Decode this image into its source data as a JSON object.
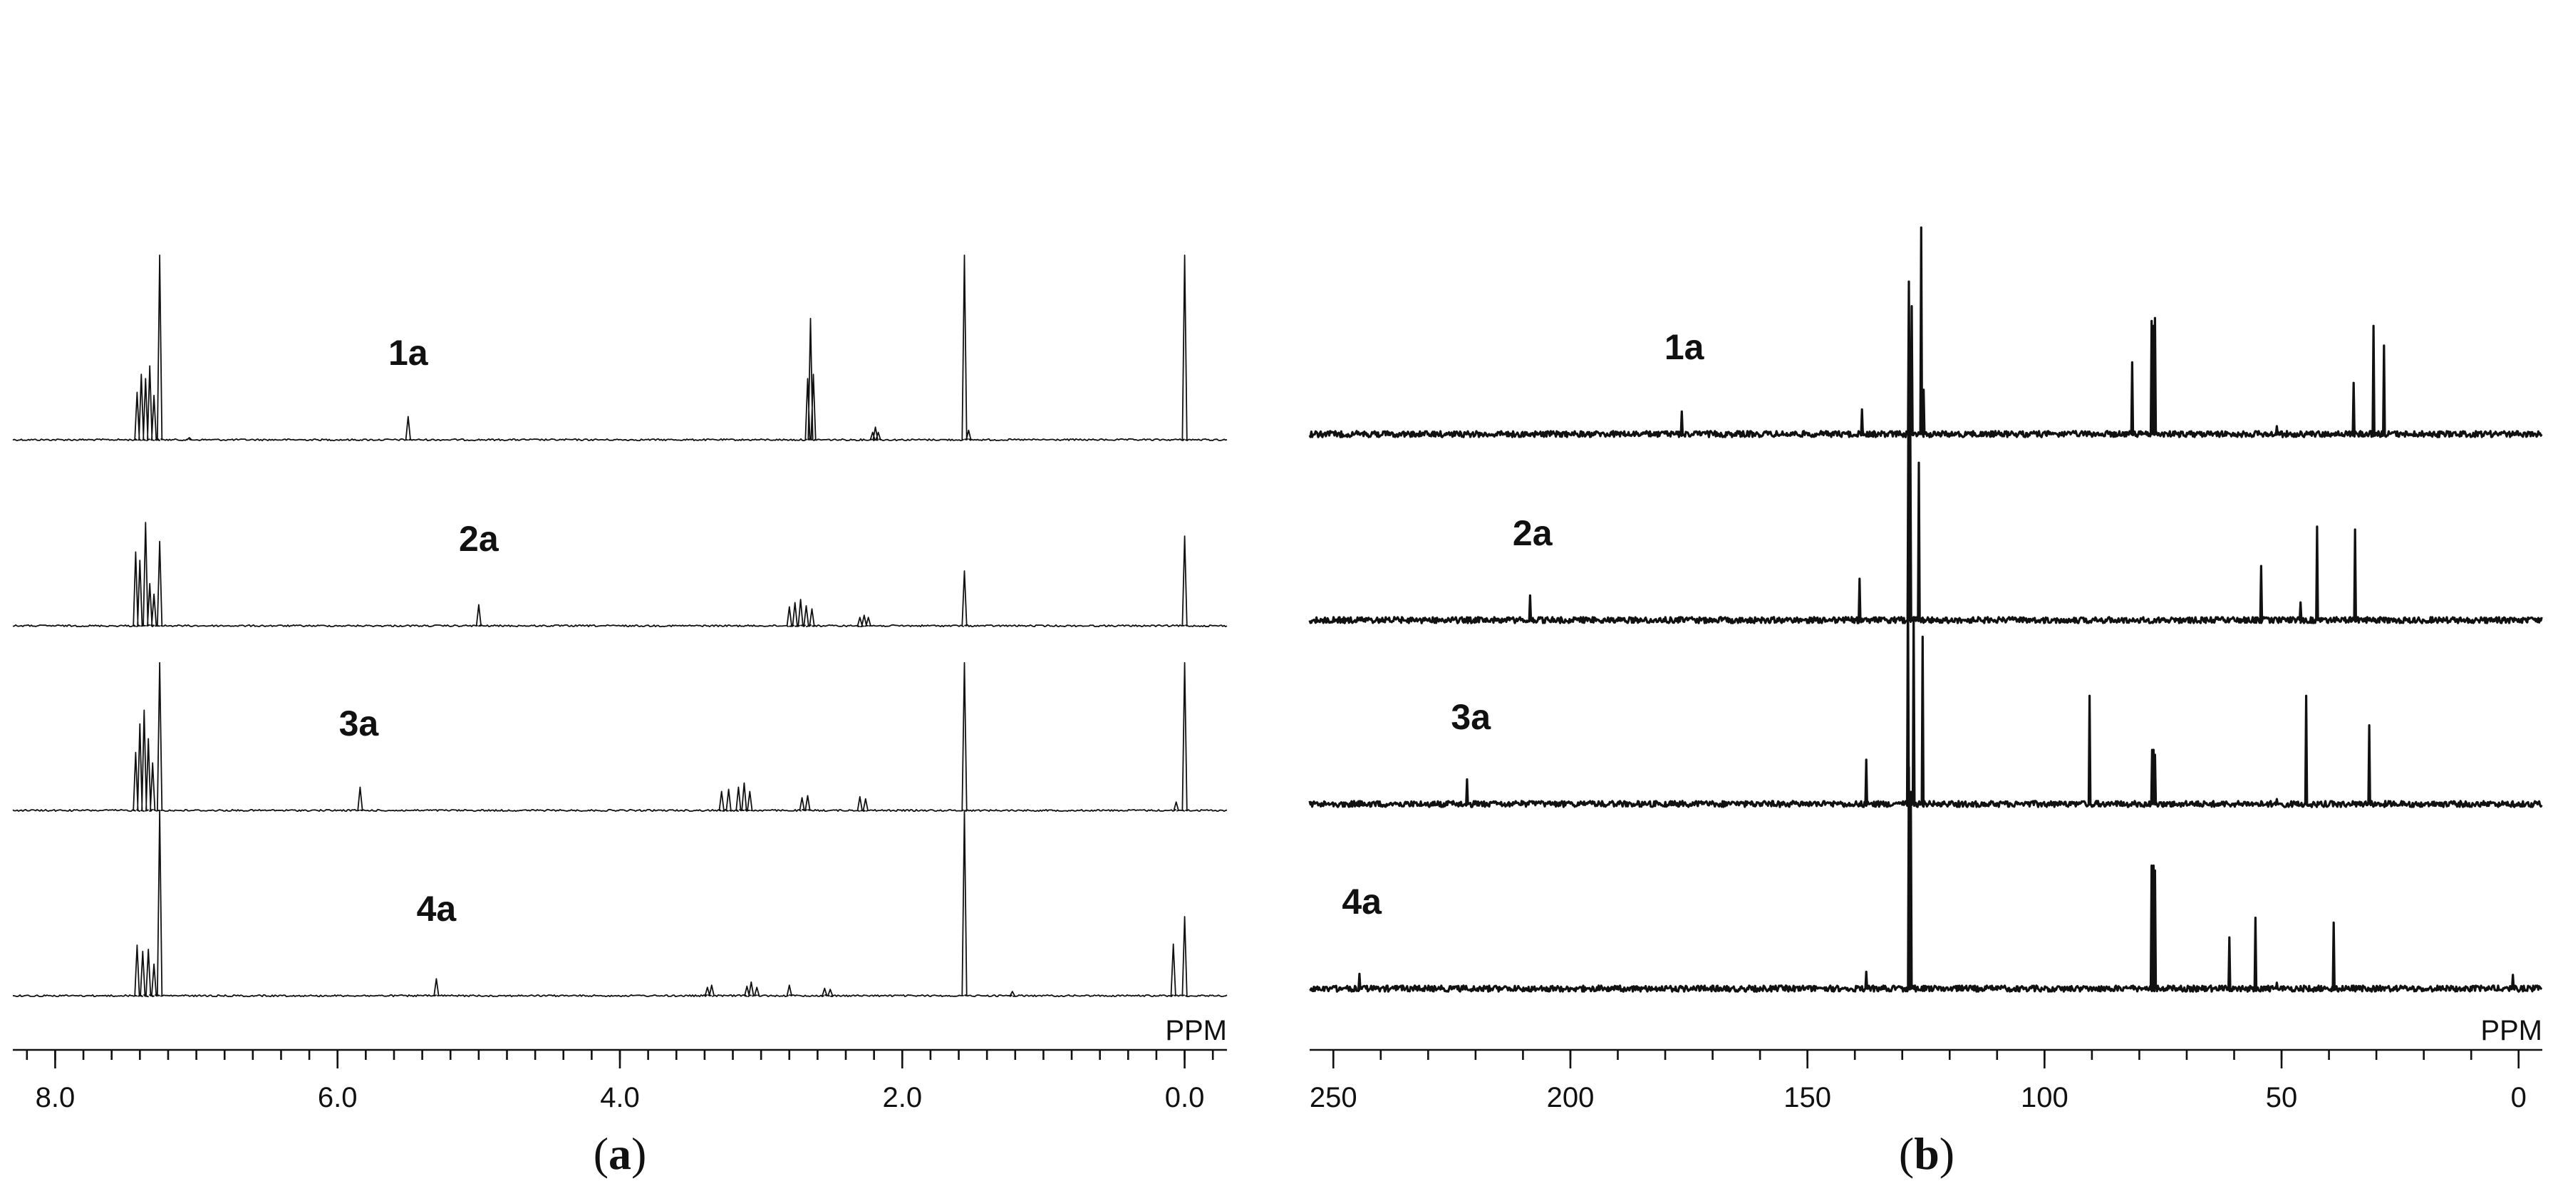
{
  "chart_data": [
    {
      "type": "line",
      "panel": "(a)",
      "panel_letter": "a",
      "unit": "PPM",
      "xlim": [
        8.3,
        -0.3
      ],
      "x_ticks": [
        8.0,
        6.0,
        4.0,
        2.0,
        0.0
      ],
      "tick_labels": [
        "8.0",
        "6.0",
        "4.0",
        "2.0",
        "0.0"
      ],
      "minor_step": 0.2,
      "series": [
        {
          "name": "1a",
          "label_at": 5.5,
          "peaks": [
            [
              7.42,
              0.45
            ],
            [
              7.39,
              0.62
            ],
            [
              7.36,
              0.58
            ],
            [
              7.33,
              0.7
            ],
            [
              7.3,
              0.42
            ],
            [
              7.26,
              1.75
            ],
            [
              7.05,
              0.02
            ],
            [
              5.5,
              0.22
            ],
            [
              2.67,
              0.58
            ],
            [
              2.65,
              1.15
            ],
            [
              2.63,
              0.62
            ],
            [
              2.21,
              0.07
            ],
            [
              2.19,
              0.12
            ],
            [
              2.17,
              0.07
            ],
            [
              1.56,
              1.75
            ],
            [
              1.53,
              0.09
            ],
            [
              0.0,
              1.75
            ]
          ]
        },
        {
          "name": "2a",
          "label_at": 5.0,
          "peaks": [
            [
              7.43,
              0.7
            ],
            [
              7.4,
              0.62
            ],
            [
              7.36,
              0.98
            ],
            [
              7.33,
              0.4
            ],
            [
              7.3,
              0.3
            ],
            [
              7.26,
              0.8
            ],
            [
              5.0,
              0.2
            ],
            [
              2.8,
              0.18
            ],
            [
              2.76,
              0.22
            ],
            [
              2.72,
              0.25
            ],
            [
              2.68,
              0.19
            ],
            [
              2.64,
              0.16
            ],
            [
              2.3,
              0.08
            ],
            [
              2.27,
              0.1
            ],
            [
              2.24,
              0.08
            ],
            [
              1.56,
              0.52
            ],
            [
              0.0,
              0.85
            ]
          ]
        },
        {
          "name": "3a",
          "label_at": 5.85,
          "peaks": [
            [
              7.43,
              0.55
            ],
            [
              7.4,
              0.82
            ],
            [
              7.37,
              0.95
            ],
            [
              7.34,
              0.68
            ],
            [
              7.31,
              0.45
            ],
            [
              7.26,
              1.4
            ],
            [
              5.84,
              0.22
            ],
            [
              3.28,
              0.18
            ],
            [
              3.23,
              0.2
            ],
            [
              3.16,
              0.22
            ],
            [
              3.12,
              0.26
            ],
            [
              3.08,
              0.18
            ],
            [
              2.71,
              0.12
            ],
            [
              2.67,
              0.14
            ],
            [
              2.3,
              0.13
            ],
            [
              2.26,
              0.11
            ],
            [
              1.56,
              1.4
            ],
            [
              0.06,
              0.08
            ],
            [
              0.0,
              1.4
            ]
          ]
        },
        {
          "name": "4a",
          "label_at": 5.3,
          "peaks": [
            [
              7.42,
              0.48
            ],
            [
              7.38,
              0.42
            ],
            [
              7.34,
              0.44
            ],
            [
              7.3,
              0.3
            ],
            [
              7.26,
              1.75
            ],
            [
              5.3,
              0.16
            ],
            [
              3.38,
              0.08
            ],
            [
              3.35,
              0.1
            ],
            [
              3.1,
              0.09
            ],
            [
              3.07,
              0.13
            ],
            [
              3.03,
              0.08
            ],
            [
              2.8,
              0.1
            ],
            [
              2.55,
              0.07
            ],
            [
              2.51,
              0.06
            ],
            [
              1.56,
              1.75
            ],
            [
              1.22,
              0.04
            ],
            [
              0.08,
              0.49
            ],
            [
              0.0,
              0.75
            ]
          ]
        }
      ]
    },
    {
      "type": "line",
      "panel": "(b)",
      "panel_letter": "b",
      "unit": "PPM",
      "xlim": [
        255,
        -5
      ],
      "x_ticks": [
        250,
        200,
        150,
        100,
        50,
        0
      ],
      "tick_labels": [
        "250",
        "200",
        "150",
        "100",
        "50",
        "0"
      ],
      "minor_step": 10,
      "series": [
        {
          "name": "1a",
          "label_at": 176,
          "peaks": [
            [
              176.5,
              0.23
            ],
            [
              138.5,
              0.25
            ],
            [
              128.6,
              1.55
            ],
            [
              128.0,
              1.3
            ],
            [
              126.0,
              2.1
            ],
            [
              125.5,
              0.45
            ],
            [
              81.5,
              0.73
            ],
            [
              77.4,
              1.15
            ],
            [
              77.0,
              1.1
            ],
            [
              76.7,
              1.18
            ],
            [
              51.0,
              0.08
            ],
            [
              34.8,
              0.52
            ],
            [
              30.6,
              1.1
            ],
            [
              28.4,
              0.9
            ]
          ]
        },
        {
          "name": "2a",
          "label_at": 208,
          "peaks": [
            [
              208.5,
              0.25
            ],
            [
              139.0,
              0.42
            ],
            [
              128.7,
              2.3
            ],
            [
              128.3,
              1.9
            ],
            [
              126.5,
              1.6
            ],
            [
              54.3,
              0.55
            ],
            [
              42.5,
              0.95
            ],
            [
              34.5,
              0.92
            ],
            [
              46.0,
              0.18
            ]
          ]
        },
        {
          "name": "3a",
          "label_at": 221,
          "peaks": [
            [
              221.8,
              0.25
            ],
            [
              137.6,
              0.45
            ],
            [
              128.8,
              2.3
            ],
            [
              127.6,
              1.9
            ],
            [
              125.7,
              1.7
            ],
            [
              90.5,
              1.1
            ],
            [
              77.3,
              0.55
            ],
            [
              77.0,
              0.55
            ],
            [
              76.7,
              0.5
            ],
            [
              44.8,
              1.1
            ],
            [
              31.5,
              0.8
            ],
            [
              51.0,
              0.05
            ]
          ]
        },
        {
          "name": "4a",
          "label_at": 244,
          "peaks": [
            [
              244.5,
              0.15
            ],
            [
              137.6,
              0.17
            ],
            [
              128.6,
              2.25
            ],
            [
              128.2,
              2.0
            ],
            [
              77.4,
              1.25
            ],
            [
              77.0,
              1.25
            ],
            [
              76.7,
              1.2
            ],
            [
              61.0,
              0.52
            ],
            [
              55.5,
              0.72
            ],
            [
              51.0,
              0.06
            ],
            [
              39.0,
              0.67
            ],
            [
              1.2,
              0.14
            ]
          ]
        }
      ]
    }
  ]
}
